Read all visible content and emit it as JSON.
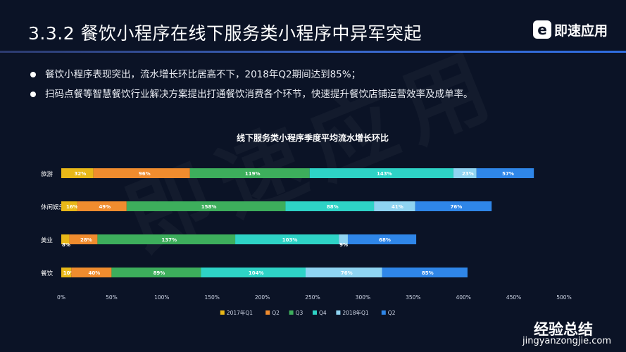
{
  "slide": {
    "title": "3.3.2   餐饮小程序在线下服务类小程序中异军突起",
    "brand_letter": "e",
    "brand_name": "即速应用",
    "watermark": "即速应用",
    "bullets": [
      "餐饮小程序表现突出，流水增长环比居高不下，2018年Q2期间达到85%；",
      "扫码点餐等智慧餐饮行业解决方案提出打通餐饮消费各个环节，快速提升餐饮店铺运营效率及成单率。"
    ],
    "corner_watermark_cn": "经验总结",
    "corner_watermark_url": "jingyanzongjie.com"
  },
  "chart_data": {
    "type": "bar",
    "orientation": "horizontal",
    "stacked": true,
    "title": "线下服务类小程序季度平均流水增长环比",
    "categories": [
      "旅游",
      "休闲娱乐",
      "美业",
      "餐饮"
    ],
    "series": [
      {
        "name": "2017年Q1",
        "color": "#e9b818",
        "values": [
          32,
          16,
          8,
          10
        ]
      },
      {
        "name": "Q2",
        "color": "#f08c2e",
        "values": [
          96,
          49,
          28,
          40
        ]
      },
      {
        "name": "Q3",
        "color": "#3dae5c",
        "values": [
          119,
          158,
          137,
          89
        ]
      },
      {
        "name": "Q4",
        "color": "#2ed3c6",
        "values": [
          143,
          88,
          103,
          104
        ]
      },
      {
        "name": "2018年Q1",
        "color": "#8fd4f2",
        "values": [
          23,
          41,
          9,
          76
        ]
      },
      {
        "name": "Q2",
        "color": "#2f86e8",
        "values": [
          57,
          76,
          68,
          85
        ]
      }
    ],
    "xlim": [
      0,
      500
    ],
    "xticks": [
      "0%",
      "50%",
      "100%",
      "150%",
      "200%",
      "250%",
      "300%",
      "350%",
      "400%",
      "450%",
      "500%"
    ],
    "value_suffix": "%",
    "legend_position": "bottom",
    "grid": false
  }
}
